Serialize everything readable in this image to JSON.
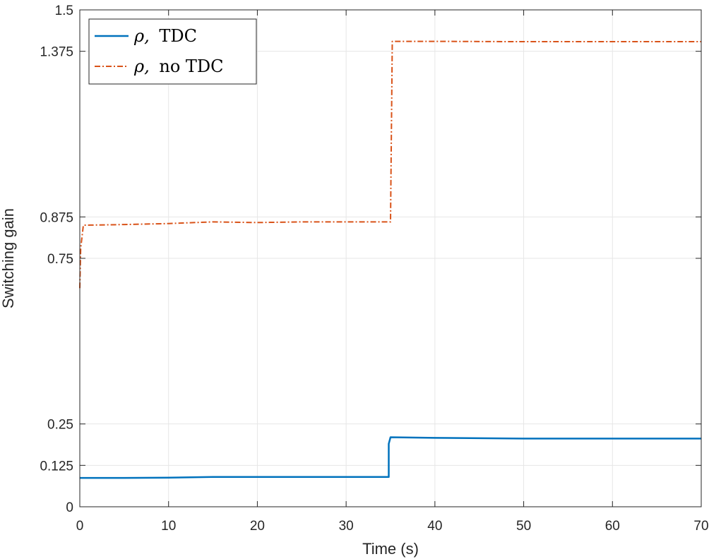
{
  "chart_data": {
    "type": "line",
    "title": "",
    "xlabel": "Time (s)",
    "ylabel": "Switching gain",
    "xlim": [
      0,
      70
    ],
    "ylim": [
      0,
      1.5
    ],
    "xticks": [
      0,
      10,
      20,
      30,
      40,
      50,
      60,
      70
    ],
    "yticks": [
      0,
      0.125,
      0.25,
      0.75,
      0.875,
      1.375,
      1.5
    ],
    "xtick_labels": [
      "0",
      "10",
      "20",
      "30",
      "40",
      "50",
      "60",
      "70"
    ],
    "ytick_labels": [
      "0",
      "0.125",
      "0.25",
      "0.75",
      "0.875",
      "1.375",
      "1.5"
    ],
    "grid": true,
    "legend_position": "top-left",
    "series": [
      {
        "name": "TDC",
        "legend_symbol": "ρ,",
        "legend_text": "TDC",
        "color": "#0072BD",
        "style": "solid",
        "x": [
          0,
          5,
          10,
          15,
          20,
          25,
          30,
          34.8,
          34.8,
          35,
          40,
          50,
          60,
          70
        ],
        "y": [
          0.087,
          0.087,
          0.088,
          0.09,
          0.09,
          0.09,
          0.09,
          0.09,
          0.19,
          0.21,
          0.208,
          0.206,
          0.206,
          0.206
        ]
      },
      {
        "name": "no TDC",
        "legend_symbol": "ρ,",
        "legend_text": "no TDC",
        "color": "#D95319",
        "style": "dashdot",
        "x": [
          0,
          0.1,
          0.4,
          5,
          10,
          15,
          20,
          25,
          30,
          35,
          35.2,
          40,
          50,
          60,
          70
        ],
        "y": [
          0.66,
          0.78,
          0.85,
          0.852,
          0.855,
          0.86,
          0.858,
          0.86,
          0.86,
          0.86,
          1.405,
          1.405,
          1.404,
          1.404,
          1.404
        ]
      }
    ]
  }
}
